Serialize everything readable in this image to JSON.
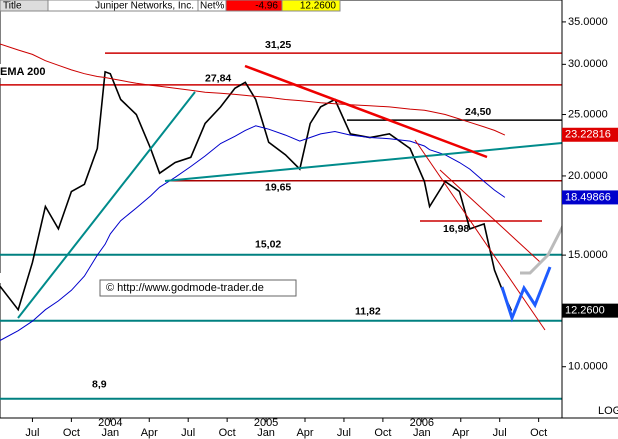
{
  "chart_data": {
    "type": "line",
    "title": "Juniper Networks, Inc.",
    "header": {
      "tab": "Title",
      "net_label": "Net%",
      "net_change": "-4.96",
      "last": "12.2600"
    },
    "watermark": "© http://www.godmode-trader.de",
    "log_scale": true,
    "scale_label": "LOG",
    "ema_label": "EMA 200",
    "x": [
      3.5,
      4.9,
      6,
      7,
      8,
      9,
      10,
      11,
      11.6,
      12,
      12.8,
      14,
      15.1,
      15.8,
      17,
      18.2,
      19.3,
      20.5,
      21.6,
      22.4,
      23.2,
      24.2,
      25.5,
      26.6,
      27.4,
      28.2,
      29.3,
      30.5,
      32,
      33.5,
      35.1,
      36.2,
      36.6,
      37.8,
      38.9,
      39.7,
      40.8,
      41.6,
      42.4,
      42.9
    ],
    "series": [
      {
        "color": "#000000",
        "values": [
          13.4,
          12.3,
          14.6,
          17.9,
          16.5,
          18.9,
          19.4,
          22.1,
          29.2,
          29,
          26.4,
          25,
          22.1,
          20.2,
          21,
          21.4,
          24.2,
          25.7,
          27.5,
          28.1,
          26.4,
          22.6,
          21.6,
          20.5,
          24.2,
          25.7,
          26.4,
          23.3,
          23,
          23.3,
          22.1,
          19.6,
          17.9,
          19.6,
          18.9,
          16.5,
          16.8,
          14.2,
          12.9,
          12.26
        ]
      },
      {
        "name": "EMA 200",
        "color": "#cc0000",
        "values": [
          32.3,
          31.6,
          31.1,
          30.4,
          29.9,
          29.4,
          29.0,
          28.7,
          28.6,
          28.5,
          28.3,
          28.0,
          27.8,
          27.7,
          27.5,
          27.3,
          27.1,
          27.0,
          26.9,
          26.8,
          26.7,
          26.6,
          26.4,
          26.3,
          26.2,
          26.1,
          26.0,
          25.9,
          25.8,
          25.7,
          25.5,
          25.4,
          25.3,
          25.0,
          24.6,
          24.3,
          23.9,
          23.6,
          23.2,
          null
        ]
      },
      {
        "color": "#0000cc",
        "values": [
          11.0,
          11.4,
          11.8,
          12.3,
          12.7,
          13.2,
          13.9,
          15.0,
          15.6,
          16.2,
          17.0,
          17.8,
          18.6,
          19.2,
          19.9,
          20.7,
          21.5,
          22.5,
          23.1,
          23.6,
          24.0,
          23.7,
          23.2,
          22.7,
          23.0,
          23.3,
          23.5,
          23.2,
          23.0,
          22.9,
          22.7,
          22.3,
          22.0,
          21.6,
          21.0,
          20.5,
          19.6,
          19.0,
          18.5,
          null
        ]
      }
    ],
    "xlim": [
      3.5,
      46.8
    ],
    "xticks": [
      {
        "value": 6,
        "label": "Jul"
      },
      {
        "value": 9,
        "label": "Oct"
      },
      {
        "value": 12,
        "label": "Jan"
      },
      {
        "value": 15,
        "label": "Apr"
      },
      {
        "value": 18,
        "label": "Jul"
      },
      {
        "value": 21,
        "label": "Oct"
      },
      {
        "value": 24,
        "label": "Jan"
      },
      {
        "value": 27,
        "label": "Apr"
      },
      {
        "value": 30,
        "label": "Jul"
      },
      {
        "value": 33,
        "label": "Oct"
      },
      {
        "value": 36,
        "label": "Jan"
      },
      {
        "value": 39,
        "label": "Apr"
      },
      {
        "value": 42,
        "label": "Jul"
      },
      {
        "value": 45,
        "label": "Oct"
      }
    ],
    "year_labels": [
      {
        "value": 12,
        "label": "2004"
      },
      {
        "value": 24,
        "label": "2005"
      },
      {
        "value": 36,
        "label": "2006"
      }
    ],
    "ylim": [
      8.3,
      37.9
    ],
    "yticks": [
      {
        "value": 35,
        "label": "35.0000"
      },
      {
        "value": 30,
        "label": "30.0000"
      },
      {
        "value": 25,
        "label": "25.0000"
      },
      {
        "value": 20,
        "label": "20.0000"
      },
      {
        "value": 15,
        "label": "15.0000"
      },
      {
        "value": 10,
        "label": "10.0000"
      }
    ],
    "price_labels": [
      {
        "value": 23.22816,
        "label": "23.22816",
        "color": "#dd0000"
      },
      {
        "value": 18.49866,
        "label": "18.49866",
        "color": "#0000cc"
      },
      {
        "value": 12.26,
        "label": "12.2600",
        "color": "#000000"
      }
    ],
    "levels": [
      {
        "value": 31.25,
        "label": "31,25",
        "color": "#cc0000"
      },
      {
        "value": 27.84,
        "label": "27,84",
        "color": "#cc0000"
      },
      {
        "value": 24.5,
        "label": "24,50",
        "color": "#000000"
      },
      {
        "value": 19.65,
        "label": "19,65",
        "color": "#aa0000"
      },
      {
        "value": 16.98,
        "label": "16,98",
        "color": "#cc0000"
      },
      {
        "value": 15.02,
        "label": "15,02",
        "color": "#008080"
      },
      {
        "value": 11.82,
        "label": "11,82",
        "color": "#008080"
      },
      {
        "value": 8.9,
        "label": "8,9",
        "color": "#008080"
      }
    ]
  }
}
